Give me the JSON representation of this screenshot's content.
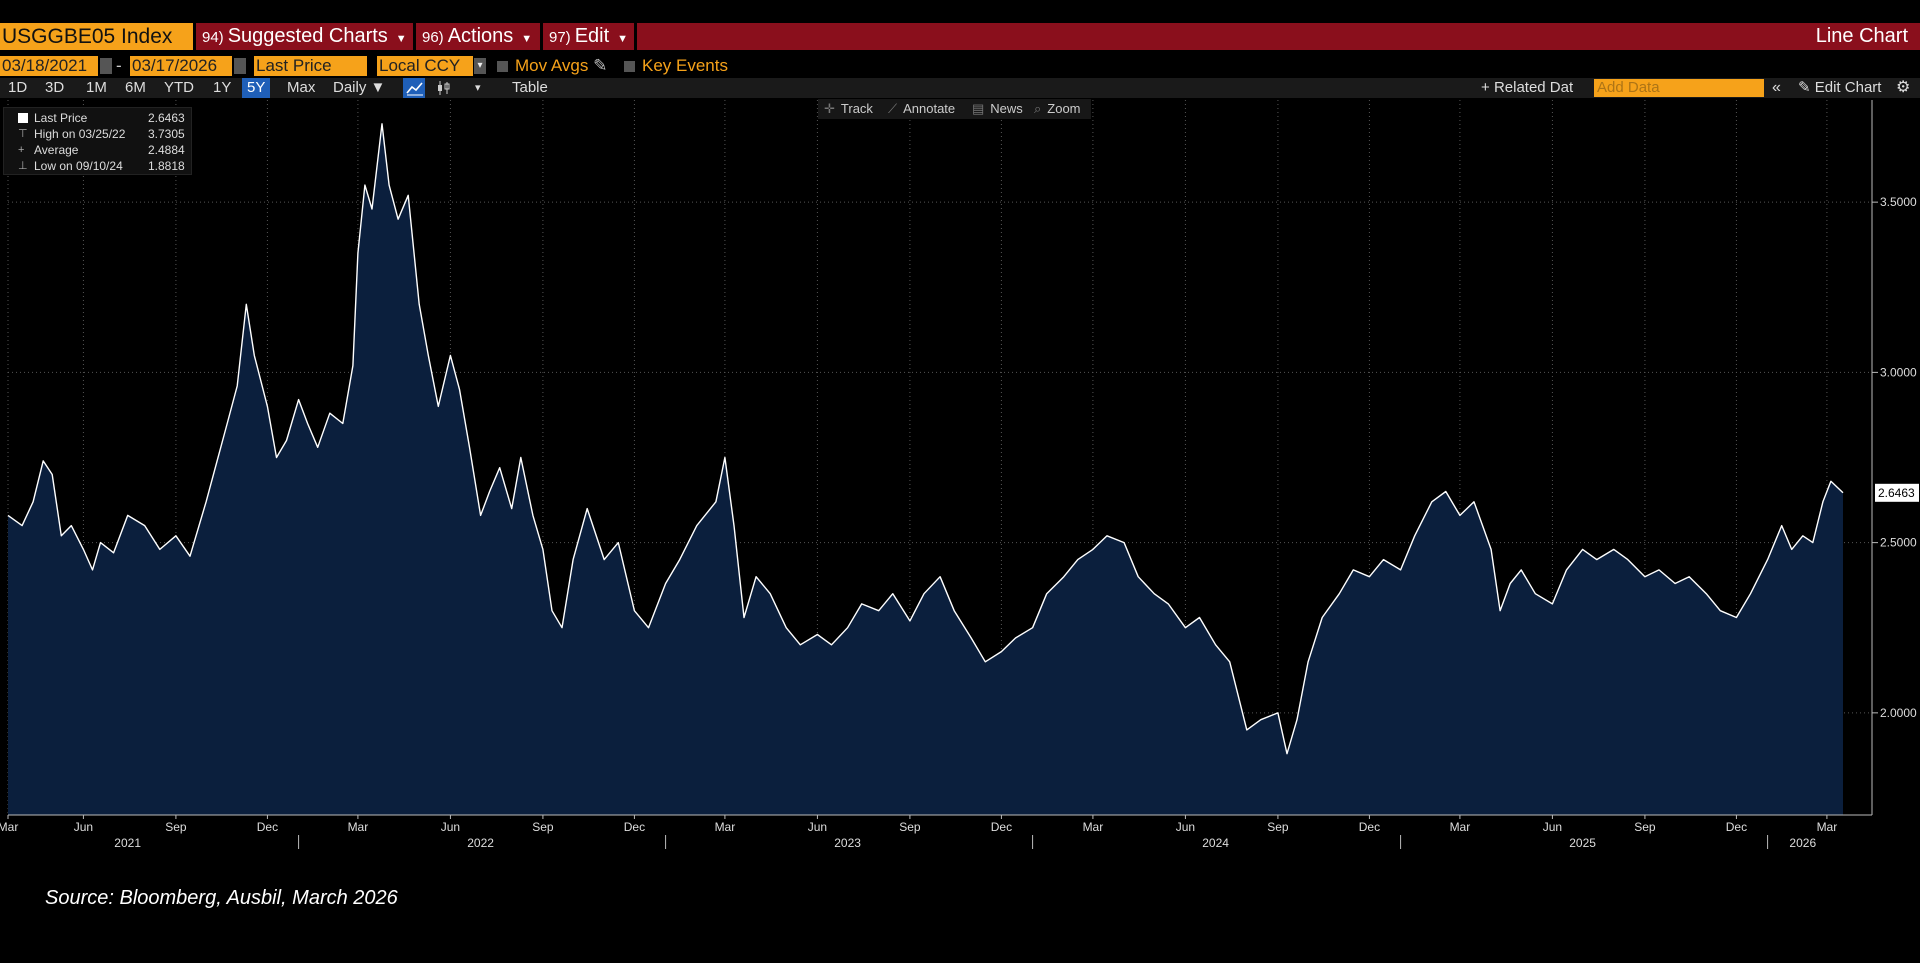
{
  "header": {
    "ticker": "USGGBE05 Index",
    "menus": [
      {
        "num": "94)",
        "label": "Suggested Charts"
      },
      {
        "num": "96)",
        "label": "Actions"
      },
      {
        "num": "97)",
        "label": "Edit"
      }
    ],
    "chart_type": "Line Chart"
  },
  "controls": {
    "start_date": "03/18/2021",
    "end_date": "03/17/2026",
    "field": "Last Price",
    "currency": "Local CCY",
    "mov_avgs": "Mov Avgs",
    "key_events": "Key Events"
  },
  "toolbar": {
    "periods": [
      "1D",
      "3D",
      "1M",
      "6M",
      "YTD",
      "1Y",
      "5Y",
      "Max"
    ],
    "active_period": "5Y",
    "frequency": "Daily",
    "table": "Table",
    "related_data": "Related Dat",
    "add_data_placeholder": "Add Data",
    "edit_chart": "Edit Chart"
  },
  "chart_tools": [
    "Track",
    "Annotate",
    "News",
    "Zoom"
  ],
  "legend": {
    "rows": [
      {
        "label": "Last Price",
        "value": "2.6463"
      },
      {
        "label": "High on 03/25/22",
        "value": "3.7305"
      },
      {
        "label": "Average",
        "value": "2.4884"
      },
      {
        "label": "Low on 09/10/24",
        "value": "1.8818"
      }
    ]
  },
  "colors": {
    "accent": "#f6a21a",
    "header_bar": "#8a0f1c",
    "area_fill": "#0b1f3d",
    "line": "#ffffff"
  },
  "chart_data": {
    "type": "area",
    "ylim": [
      1.7,
      3.8
    ],
    "y_ticks": [
      "2.0000",
      "2.5000",
      "3.0000",
      "3.5000"
    ],
    "y_tick_values": [
      2.0,
      2.5,
      3.0,
      3.5
    ],
    "last_value_label": "2.6463",
    "x_month_ticks": [
      {
        "date": "2021-03-18",
        "label": "Mar"
      },
      {
        "date": "2021-06-01",
        "label": "Jun"
      },
      {
        "date": "2021-09-01",
        "label": "Sep"
      },
      {
        "date": "2021-12-01",
        "label": "Dec"
      },
      {
        "date": "2022-03-01",
        "label": "Mar"
      },
      {
        "date": "2022-06-01",
        "label": "Jun"
      },
      {
        "date": "2022-09-01",
        "label": "Sep"
      },
      {
        "date": "2022-12-01",
        "label": "Dec"
      },
      {
        "date": "2023-03-01",
        "label": "Mar"
      },
      {
        "date": "2023-06-01",
        "label": "Jun"
      },
      {
        "date": "2023-09-01",
        "label": "Sep"
      },
      {
        "date": "2023-12-01",
        "label": "Dec"
      },
      {
        "date": "2024-03-01",
        "label": "Mar"
      },
      {
        "date": "2024-06-01",
        "label": "Jun"
      },
      {
        "date": "2024-09-01",
        "label": "Sep"
      },
      {
        "date": "2024-12-01",
        "label": "Dec"
      },
      {
        "date": "2025-03-01",
        "label": "Mar"
      },
      {
        "date": "2025-06-01",
        "label": "Jun"
      },
      {
        "date": "2025-09-01",
        "label": "Sep"
      },
      {
        "date": "2025-12-01",
        "label": "Dec"
      },
      {
        "date": "2026-03-01",
        "label": "Mar"
      }
    ],
    "x_year_labels": [
      {
        "date": "2021-07-15",
        "label": "2021"
      },
      {
        "date": "2022-07-01",
        "label": "2022"
      },
      {
        "date": "2023-07-01",
        "label": "2023"
      },
      {
        "date": "2024-07-01",
        "label": "2024"
      },
      {
        "date": "2025-07-01",
        "label": "2025"
      },
      {
        "date": "2026-02-05",
        "label": "2026"
      }
    ],
    "x_year_boundaries": [
      "2022-01-01",
      "2023-01-01",
      "2024-01-01",
      "2025-01-01",
      "2026-01-01"
    ],
    "series": [
      {
        "points": [
          [
            "2021-03-18",
            2.58
          ],
          [
            "2021-04-01",
            2.55
          ],
          [
            "2021-04-12",
            2.62
          ],
          [
            "2021-04-22",
            2.74
          ],
          [
            "2021-05-01",
            2.7
          ],
          [
            "2021-05-10",
            2.52
          ],
          [
            "2021-05-20",
            2.55
          ],
          [
            "2021-06-01",
            2.48
          ],
          [
            "2021-06-10",
            2.42
          ],
          [
            "2021-06-18",
            2.5
          ],
          [
            "2021-07-01",
            2.47
          ],
          [
            "2021-07-15",
            2.58
          ],
          [
            "2021-08-01",
            2.55
          ],
          [
            "2021-08-16",
            2.48
          ],
          [
            "2021-09-01",
            2.52
          ],
          [
            "2021-09-15",
            2.46
          ],
          [
            "2021-10-01",
            2.62
          ],
          [
            "2021-10-12",
            2.74
          ],
          [
            "2021-10-22",
            2.85
          ],
          [
            "2021-11-01",
            2.96
          ],
          [
            "2021-11-10",
            3.2
          ],
          [
            "2021-11-18",
            3.05
          ],
          [
            "2021-12-01",
            2.9
          ],
          [
            "2021-12-10",
            2.75
          ],
          [
            "2021-12-20",
            2.8
          ],
          [
            "2022-01-01",
            2.92
          ],
          [
            "2022-01-10",
            2.85
          ],
          [
            "2022-01-20",
            2.78
          ],
          [
            "2022-02-01",
            2.88
          ],
          [
            "2022-02-14",
            2.85
          ],
          [
            "2022-02-24",
            3.02
          ],
          [
            "2022-03-01",
            3.35
          ],
          [
            "2022-03-08",
            3.55
          ],
          [
            "2022-03-15",
            3.48
          ],
          [
            "2022-03-25",
            3.73
          ],
          [
            "2022-04-01",
            3.55
          ],
          [
            "2022-04-10",
            3.45
          ],
          [
            "2022-04-20",
            3.52
          ],
          [
            "2022-05-01",
            3.2
          ],
          [
            "2022-05-10",
            3.05
          ],
          [
            "2022-05-20",
            2.9
          ],
          [
            "2022-06-01",
            3.05
          ],
          [
            "2022-06-10",
            2.95
          ],
          [
            "2022-06-20",
            2.78
          ],
          [
            "2022-07-01",
            2.58
          ],
          [
            "2022-07-10",
            2.65
          ],
          [
            "2022-07-20",
            2.72
          ],
          [
            "2022-08-01",
            2.6
          ],
          [
            "2022-08-10",
            2.75
          ],
          [
            "2022-08-22",
            2.58
          ],
          [
            "2022-09-01",
            2.48
          ],
          [
            "2022-09-10",
            2.3
          ],
          [
            "2022-09-20",
            2.25
          ],
          [
            "2022-10-01",
            2.45
          ],
          [
            "2022-10-15",
            2.6
          ],
          [
            "2022-11-01",
            2.45
          ],
          [
            "2022-11-15",
            2.5
          ],
          [
            "2022-12-01",
            2.3
          ],
          [
            "2022-12-15",
            2.25
          ],
          [
            "2023-01-01",
            2.38
          ],
          [
            "2023-01-15",
            2.45
          ],
          [
            "2023-02-01",
            2.55
          ],
          [
            "2023-02-20",
            2.62
          ],
          [
            "2023-03-01",
            2.75
          ],
          [
            "2023-03-10",
            2.55
          ],
          [
            "2023-03-20",
            2.28
          ],
          [
            "2023-04-01",
            2.4
          ],
          [
            "2023-04-15",
            2.35
          ],
          [
            "2023-05-01",
            2.25
          ],
          [
            "2023-05-15",
            2.2
          ],
          [
            "2023-06-01",
            2.23
          ],
          [
            "2023-06-15",
            2.2
          ],
          [
            "2023-07-01",
            2.25
          ],
          [
            "2023-07-15",
            2.32
          ],
          [
            "2023-08-01",
            2.3
          ],
          [
            "2023-08-15",
            2.35
          ],
          [
            "2023-09-01",
            2.27
          ],
          [
            "2023-09-15",
            2.35
          ],
          [
            "2023-10-01",
            2.4
          ],
          [
            "2023-10-15",
            2.3
          ],
          [
            "2023-11-01",
            2.22
          ],
          [
            "2023-11-15",
            2.15
          ],
          [
            "2023-12-01",
            2.18
          ],
          [
            "2023-12-15",
            2.22
          ],
          [
            "2024-01-01",
            2.25
          ],
          [
            "2024-01-15",
            2.35
          ],
          [
            "2024-02-01",
            2.4
          ],
          [
            "2024-02-15",
            2.45
          ],
          [
            "2024-03-01",
            2.48
          ],
          [
            "2024-03-15",
            2.52
          ],
          [
            "2024-04-01",
            2.5
          ],
          [
            "2024-04-15",
            2.4
          ],
          [
            "2024-05-01",
            2.35
          ],
          [
            "2024-05-15",
            2.32
          ],
          [
            "2024-06-01",
            2.25
          ],
          [
            "2024-06-15",
            2.28
          ],
          [
            "2024-07-01",
            2.2
          ],
          [
            "2024-07-15",
            2.15
          ],
          [
            "2024-08-01",
            1.95
          ],
          [
            "2024-08-15",
            1.98
          ],
          [
            "2024-09-01",
            2.0
          ],
          [
            "2024-09-10",
            1.88
          ],
          [
            "2024-09-20",
            1.98
          ],
          [
            "2024-10-01",
            2.15
          ],
          [
            "2024-10-15",
            2.28
          ],
          [
            "2024-11-01",
            2.35
          ],
          [
            "2024-11-15",
            2.42
          ],
          [
            "2024-12-01",
            2.4
          ],
          [
            "2024-12-15",
            2.45
          ],
          [
            "2025-01-01",
            2.42
          ],
          [
            "2025-01-15",
            2.52
          ],
          [
            "2025-02-01",
            2.62
          ],
          [
            "2025-02-15",
            2.65
          ],
          [
            "2025-03-01",
            2.58
          ],
          [
            "2025-03-15",
            2.62
          ],
          [
            "2025-04-01",
            2.48
          ],
          [
            "2025-04-10",
            2.3
          ],
          [
            "2025-04-20",
            2.38
          ],
          [
            "2025-05-01",
            2.42
          ],
          [
            "2025-05-15",
            2.35
          ],
          [
            "2025-06-01",
            2.32
          ],
          [
            "2025-06-15",
            2.42
          ],
          [
            "2025-07-01",
            2.48
          ],
          [
            "2025-07-15",
            2.45
          ],
          [
            "2025-08-01",
            2.48
          ],
          [
            "2025-08-15",
            2.45
          ],
          [
            "2025-09-01",
            2.4
          ],
          [
            "2025-09-15",
            2.42
          ],
          [
            "2025-10-01",
            2.38
          ],
          [
            "2025-10-15",
            2.4
          ],
          [
            "2025-11-01",
            2.35
          ],
          [
            "2025-11-15",
            2.3
          ],
          [
            "2025-12-01",
            2.28
          ],
          [
            "2025-12-15",
            2.35
          ],
          [
            "2026-01-01",
            2.45
          ],
          [
            "2026-01-15",
            2.55
          ],
          [
            "2026-01-25",
            2.48
          ],
          [
            "2026-02-05",
            2.52
          ],
          [
            "2026-02-15",
            2.5
          ],
          [
            "2026-02-25",
            2.62
          ],
          [
            "2026-03-05",
            2.68
          ],
          [
            "2026-03-17",
            2.6463
          ]
        ]
      }
    ]
  },
  "source": "Source: Bloomberg, Ausbil, March 2026"
}
